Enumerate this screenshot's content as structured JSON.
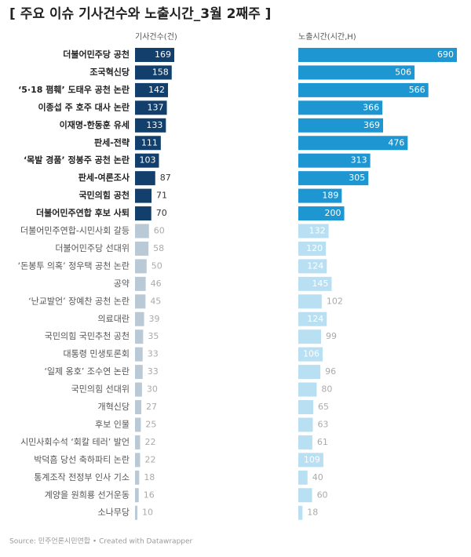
{
  "chart_data": {
    "type": "bar",
    "title": "[ 주요 이슈 기사건수와 노출시간_3월 2째주 ]",
    "source": "Source: 민주언론시민연합 • Created with Datawrapper",
    "categories": [
      "더불어민주당 공천",
      "조국혁신당",
      "‘5·18 폄훼’ 도태우 공천 논란",
      "이종섭 주 호주 대사 논란",
      "이재명-한동훈 유세",
      "판세-전략",
      "‘목발 경품’ 정봉주 공천 논란",
      "판세-여론조사",
      "국민의힘 공천",
      "더불어민주연합 후보 사퇴",
      "더불어민주연합-시민사회 갈등",
      "더불어민주당 선대위",
      "‘돈봉투 의혹’ 정우택 공천 논란",
      "공약",
      "‘난교발언’ 장예찬 공천 논란",
      "의료대란",
      "국민의힘 국민추천 공천",
      "대통령 민생토론회",
      "‘일제 옹호’ 조수연 논란",
      "국민의힘 선대위",
      "개혁신당",
      "후보 인물",
      "시민사회수석 ‘회칼 테러’ 발언",
      "박덕흠 당선 축하파티 논란",
      "통계조작 전정부 인사 기소",
      "계양을 원희룡 선거운동",
      "소나무당"
    ],
    "series": [
      {
        "name": "기사건수(건)",
        "color": "#123f6b",
        "colors": [
          "#123f6b",
          "#123f6b",
          "#123f6b",
          "#123f6b",
          "#123f6b",
          "#123f6b",
          "#123f6b",
          "#123f6b",
          "#123f6b",
          "#123f6b",
          "#b9c9d6",
          "#b9c9d6",
          "#b9c9d6",
          "#b9c9d6",
          "#b9c9d6",
          "#b9c9d6",
          "#b9c9d6",
          "#b9c9d6",
          "#b9c9d6",
          "#b9c9d6",
          "#b9c9d6",
          "#b9c9d6",
          "#b9c9d6",
          "#b9c9d6",
          "#b9c9d6",
          "#b9c9d6",
          "#b9c9d6"
        ],
        "values": [
          169,
          158,
          142,
          137,
          133,
          111,
          103,
          87,
          71,
          70,
          60,
          58,
          50,
          46,
          45,
          39,
          35,
          33,
          33,
          30,
          27,
          25,
          22,
          22,
          18,
          16,
          10
        ]
      },
      {
        "name": "노출시간(시간,H)",
        "color": "#1e96d1",
        "colors": [
          "#1e96d1",
          "#1e96d1",
          "#1e96d1",
          "#1e96d1",
          "#1e96d1",
          "#1e96d1",
          "#1e96d1",
          "#1e96d1",
          "#1e96d1",
          "#1e96d1",
          "#b8e0f2",
          "#b8e0f2",
          "#b8e0f2",
          "#b8e0f2",
          "#b8e0f2",
          "#b8e0f2",
          "#b8e0f2",
          "#b8e0f2",
          "#b8e0f2",
          "#b8e0f2",
          "#b8e0f2",
          "#b8e0f2",
          "#b8e0f2",
          "#b8e0f2",
          "#b8e0f2",
          "#b8e0f2",
          "#b8e0f2"
        ],
        "values": [
          690,
          506,
          566,
          366,
          369,
          476,
          313,
          305,
          189,
          200,
          132,
          120,
          124,
          145,
          102,
          124,
          99,
          106,
          96,
          80,
          65,
          63,
          61,
          109,
          40,
          60,
          18
        ]
      }
    ]
  }
}
